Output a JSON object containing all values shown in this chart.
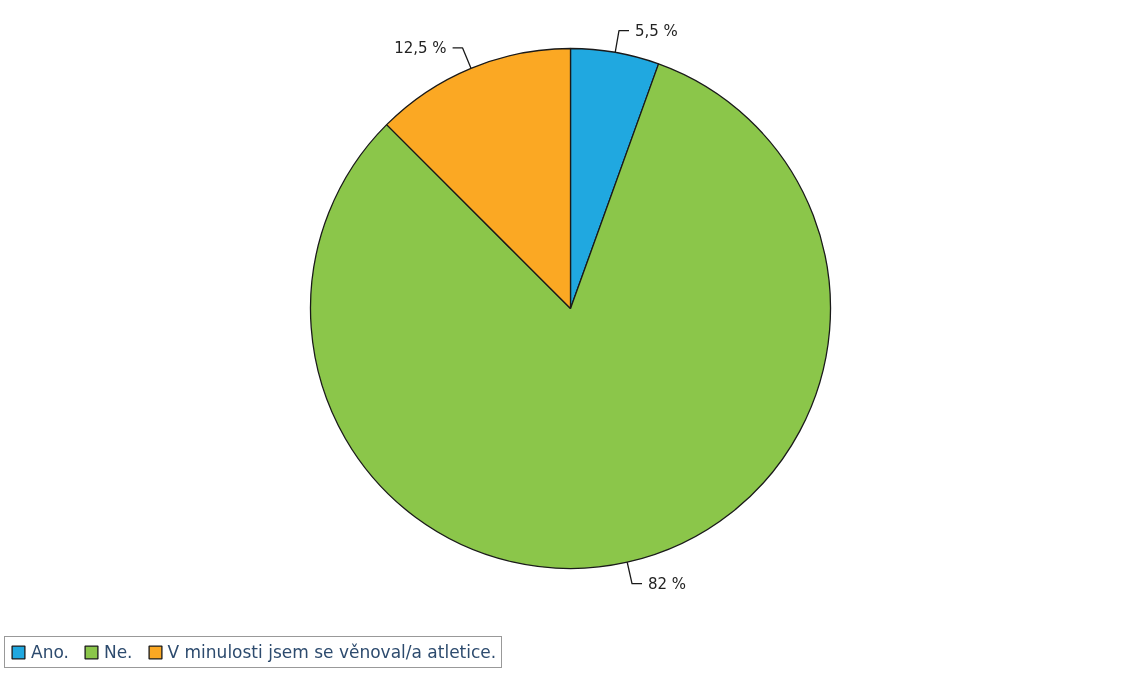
{
  "chart_data": {
    "type": "pie",
    "categories": [
      "Ano.",
      "Ne.",
      "V minulosti jsem se věnoval/a atletice."
    ],
    "values": [
      5.5,
      82,
      12.5
    ],
    "colors": [
      "#20a8e0",
      "#8bc64a",
      "#fba823"
    ],
    "value_labels": [
      "5,5 %",
      "82 %",
      "12,5 %"
    ],
    "legend": "bottom"
  }
}
